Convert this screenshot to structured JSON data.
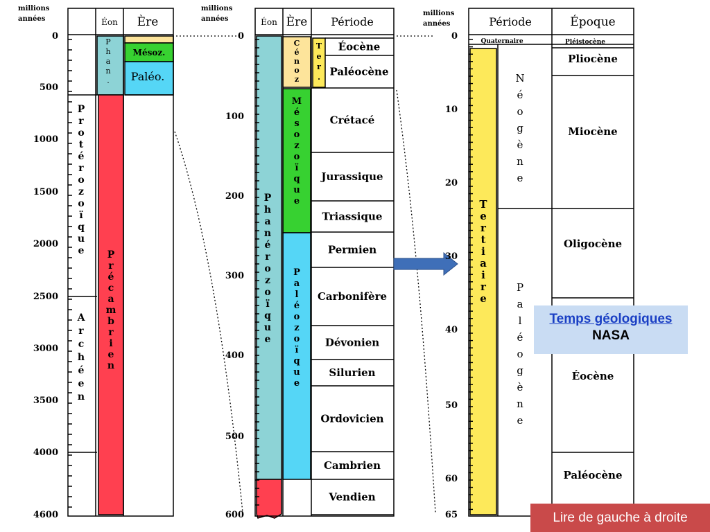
{
  "colors": {
    "red": "#ff4050",
    "cyan": "#8dd3d6",
    "blue": "#55d6f6",
    "green": "#37d131",
    "yellowTert": "#fde95a",
    "paleTert": "#fde49b",
    "arrow": "#3f6fb8"
  },
  "panel1": {
    "axis_title": [
      "millions",
      "années"
    ],
    "ticks": [
      "0",
      "500",
      "1000",
      "1500",
      "2000",
      "2500",
      "3000",
      "3500",
      "4000",
      "4600"
    ],
    "h_eon": "Éon",
    "h_era": "Ère",
    "eon_phan": "Phan.",
    "eon_precambrien": "Précambrien",
    "era_mesoz": "Mésoz.",
    "era_paleo": "Paléo.",
    "proterozoique": "Protérozoïque",
    "archeen": "Archéen"
  },
  "panel2": {
    "axis_title": [
      "millions",
      "années"
    ],
    "ticks": [
      "0",
      "100",
      "200",
      "300",
      "400",
      "500",
      "600"
    ],
    "h_eon": "Éon",
    "h_era": "Ère",
    "h_period": "Période",
    "eon_phanerozoique": "Phanérozoïque",
    "era_cenoz": "Cénoz",
    "era_mesozoique": "Mésozoïque",
    "era_paleozoique": "Paléozoïque",
    "era_ter": "Ter.",
    "periods": [
      "Éocène",
      "Paléocène",
      "Crétacé",
      "Jurassique",
      "Triassique",
      "Permien",
      "Carbonifère",
      "Dévonien",
      "Silurien",
      "Ordovicien",
      "Cambrien",
      "Vendien"
    ]
  },
  "panel3": {
    "axis_title": [
      "millions",
      "années"
    ],
    "ticks": [
      "0",
      "10",
      "20",
      "30",
      "40",
      "50",
      "60",
      "65"
    ],
    "h_period": "Période",
    "h_epoch": "Époque",
    "quaternaire": "Quaternaire",
    "pleistocene": "Pléistocène",
    "tertiaire": "Tertiaire",
    "neogene": "Néogène",
    "paleogene": "Paléogène",
    "epochs": [
      "Pliocène",
      "Miocène",
      "Oligocène",
      "Éocène",
      "Paléocène"
    ]
  },
  "credit": {
    "link": "Temps géologiques",
    "source": "NASA"
  },
  "note": "Lire de gauche à droite"
}
